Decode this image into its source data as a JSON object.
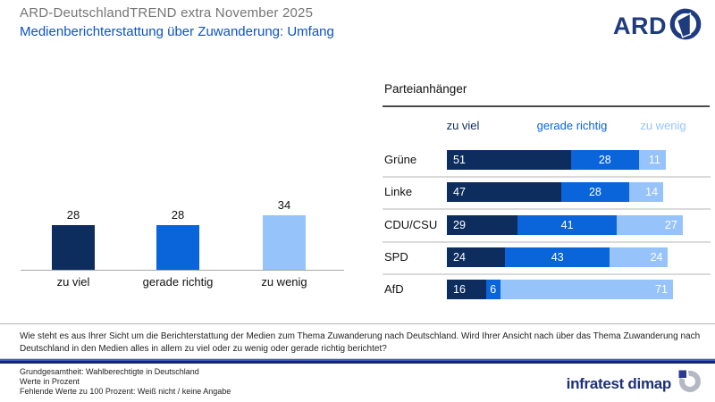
{
  "header": {
    "title": "ARD-DeutschlandTREND extra November 2025",
    "subtitle": "Medienberichterstattung über Zuwanderung: Umfang",
    "ard_text": "ARD"
  },
  "colors": {
    "dark_navy": "#0e2d5f",
    "medium_blue": "#0a64da",
    "light_blue": "#97c3fb",
    "accent_blue": "#0b52c8",
    "ard_navy": "#1d3b7d",
    "brand_navy": "#1e3178"
  },
  "chart_data": [
    {
      "type": "bar",
      "orientation": "vertical",
      "title": "",
      "categories": [
        "zu viel",
        "gerade richtig",
        "zu wenig"
      ],
      "values": [
        28,
        28,
        34
      ],
      "colors": [
        "#0e2d5f",
        "#0a64da",
        "#97c3fb"
      ],
      "ylim": [
        0,
        40
      ],
      "grid": false,
      "value_labels": "above"
    },
    {
      "type": "bar",
      "orientation": "horizontal-stacked",
      "title": "Parteianhänger",
      "categories": [
        "Grüne",
        "Linke",
        "CDU/CSU",
        "SPD",
        "AfD"
      ],
      "series": [
        {
          "name": "zu viel",
          "color": "#0e2d5f",
          "values": [
            51,
            47,
            29,
            24,
            16
          ]
        },
        {
          "name": "gerade richtig",
          "color": "#0a64da",
          "values": [
            28,
            28,
            41,
            43,
            6
          ]
        },
        {
          "name": "zu wenig",
          "color": "#97c3fb",
          "values": [
            11,
            14,
            27,
            24,
            71
          ]
        }
      ],
      "xlim": [
        0,
        100
      ],
      "legend_position": "top",
      "value_labels": "inside"
    }
  ],
  "question": {
    "text": "Wie steht es aus Ihrer Sicht um die Berichterstattung der Medien zum Thema Zuwanderung nach Deutschland. Wird Ihrer Ansicht nach über das Thema Zuwanderung nach Deutschland in den Medien alles in allem zu viel oder zu wenig oder gerade richtig berichtet?"
  },
  "footer": {
    "notes": [
      "Grundgesamtheit: Wahlberechtigte in Deutschland",
      "Werte in Prozent",
      "Fehlende Werte zu 100 Prozent: Weiß nicht / keine Angabe"
    ],
    "brand": "infratest dimap"
  }
}
